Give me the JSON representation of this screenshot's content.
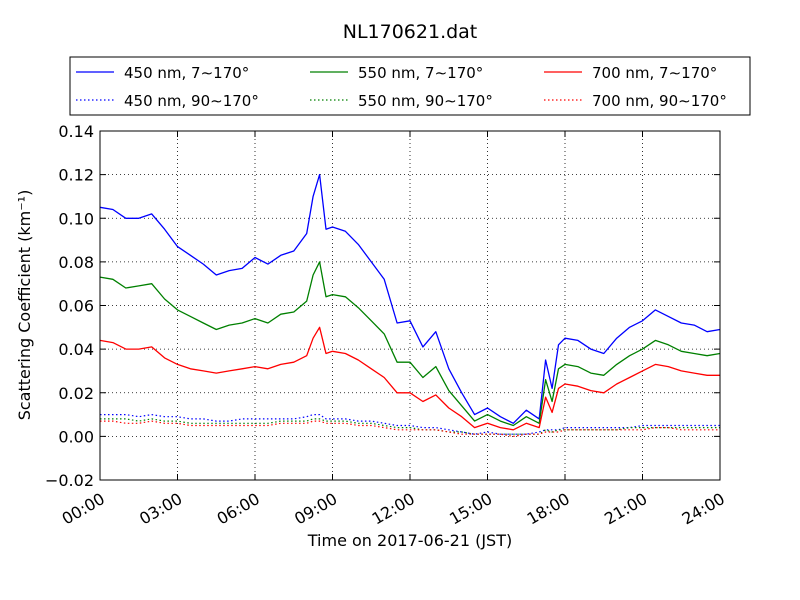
{
  "chart_data": {
    "type": "line",
    "title": "NL170621.dat",
    "xlabel": "Time on 2017-06-21 (JST)",
    "ylabel": "Scattering Coefficient (km⁻¹)",
    "xlim": [
      "00:00",
      "24:00"
    ],
    "ylim": [
      -0.02,
      0.14
    ],
    "x_ticks": [
      "00:00",
      "03:00",
      "06:00",
      "09:00",
      "12:00",
      "15:00",
      "18:00",
      "21:00",
      "24:00"
    ],
    "y_ticks": [
      "−0.02",
      "0.00",
      "0.02",
      "0.04",
      "0.06",
      "0.08",
      "0.10",
      "0.12",
      "0.14"
    ],
    "grid": true,
    "legend_placement": "top (above plot, 3 columns)",
    "x": [
      "00:00",
      "00:30",
      "01:00",
      "01:30",
      "02:00",
      "02:30",
      "03:00",
      "03:30",
      "04:00",
      "04:30",
      "05:00",
      "05:30",
      "06:00",
      "06:30",
      "07:00",
      "07:30",
      "08:00",
      "08:15",
      "08:30",
      "08:45",
      "09:00",
      "09:30",
      "10:00",
      "10:30",
      "11:00",
      "11:30",
      "12:00",
      "12:30",
      "13:00",
      "13:30",
      "14:00",
      "14:30",
      "15:00",
      "15:30",
      "16:00",
      "16:30",
      "17:00",
      "17:15",
      "17:30",
      "17:45",
      "18:00",
      "18:30",
      "19:00",
      "19:30",
      "20:00",
      "20:30",
      "21:00",
      "21:30",
      "22:00",
      "22:30",
      "23:00",
      "23:30",
      "24:00"
    ],
    "series": [
      {
        "name": "450 nm, 7∼170°",
        "color": "#0000ff",
        "style": "solid",
        "values": [
          0.105,
          0.104,
          0.1,
          0.1,
          0.102,
          0.095,
          0.087,
          0.083,
          0.079,
          0.074,
          0.076,
          0.077,
          0.082,
          0.079,
          0.083,
          0.085,
          0.093,
          0.11,
          0.12,
          0.095,
          0.096,
          0.094,
          0.088,
          0.08,
          0.072,
          0.052,
          0.053,
          0.041,
          0.048,
          0.031,
          0.02,
          0.01,
          0.013,
          0.009,
          0.006,
          0.012,
          0.008,
          0.035,
          0.022,
          0.042,
          0.045,
          0.044,
          0.04,
          0.038,
          0.045,
          0.05,
          0.053,
          0.058,
          0.055,
          0.052,
          0.051,
          0.048,
          0.049
        ]
      },
      {
        "name": "550 nm, 7∼170°",
        "color": "#008000",
        "style": "solid",
        "values": [
          0.073,
          0.072,
          0.068,
          0.069,
          0.07,
          0.063,
          0.058,
          0.055,
          0.052,
          0.049,
          0.051,
          0.052,
          0.054,
          0.052,
          0.056,
          0.057,
          0.062,
          0.074,
          0.08,
          0.064,
          0.065,
          0.064,
          0.059,
          0.053,
          0.047,
          0.034,
          0.034,
          0.027,
          0.032,
          0.021,
          0.014,
          0.007,
          0.01,
          0.007,
          0.005,
          0.009,
          0.006,
          0.026,
          0.016,
          0.031,
          0.033,
          0.032,
          0.029,
          0.028,
          0.033,
          0.037,
          0.04,
          0.044,
          0.042,
          0.039,
          0.038,
          0.037,
          0.038
        ]
      },
      {
        "name": "700 nm, 7∼170°",
        "color": "#ff0000",
        "style": "solid",
        "values": [
          0.044,
          0.043,
          0.04,
          0.04,
          0.041,
          0.036,
          0.033,
          0.031,
          0.03,
          0.029,
          0.03,
          0.031,
          0.032,
          0.031,
          0.033,
          0.034,
          0.037,
          0.045,
          0.05,
          0.038,
          0.039,
          0.038,
          0.035,
          0.031,
          0.027,
          0.02,
          0.02,
          0.016,
          0.019,
          0.013,
          0.009,
          0.004,
          0.006,
          0.004,
          0.003,
          0.006,
          0.004,
          0.018,
          0.011,
          0.022,
          0.024,
          0.023,
          0.021,
          0.02,
          0.024,
          0.027,
          0.03,
          0.033,
          0.032,
          0.03,
          0.029,
          0.028,
          0.028
        ]
      },
      {
        "name": "450 nm, 90∼170°",
        "color": "#0000ff",
        "style": "dotted",
        "values": [
          0.01,
          0.01,
          0.01,
          0.009,
          0.01,
          0.009,
          0.009,
          0.008,
          0.008,
          0.007,
          0.007,
          0.008,
          0.008,
          0.008,
          0.008,
          0.008,
          0.009,
          0.01,
          0.01,
          0.008,
          0.008,
          0.008,
          0.007,
          0.007,
          0.006,
          0.005,
          0.005,
          0.004,
          0.004,
          0.003,
          0.002,
          0.001,
          0.002,
          0.001,
          0.001,
          0.001,
          0.002,
          0.003,
          0.003,
          0.003,
          0.004,
          0.004,
          0.004,
          0.004,
          0.004,
          0.004,
          0.005,
          0.005,
          0.005,
          0.005,
          0.005,
          0.005,
          0.005
        ]
      },
      {
        "name": "550 nm, 90∼170°",
        "color": "#008000",
        "style": "dotted",
        "values": [
          0.008,
          0.008,
          0.008,
          0.007,
          0.008,
          0.007,
          0.007,
          0.006,
          0.006,
          0.006,
          0.006,
          0.006,
          0.006,
          0.006,
          0.007,
          0.007,
          0.007,
          0.008,
          0.008,
          0.007,
          0.007,
          0.007,
          0.006,
          0.006,
          0.005,
          0.004,
          0.004,
          0.003,
          0.003,
          0.002,
          0.002,
          0.001,
          0.001,
          0.001,
          0.001,
          0.001,
          0.001,
          0.003,
          0.002,
          0.003,
          0.003,
          0.003,
          0.003,
          0.003,
          0.003,
          0.004,
          0.004,
          0.004,
          0.004,
          0.004,
          0.004,
          0.004,
          0.004
        ]
      },
      {
        "name": "700 nm, 90∼170°",
        "color": "#ff0000",
        "style": "dotted",
        "values": [
          0.007,
          0.007,
          0.006,
          0.006,
          0.007,
          0.006,
          0.006,
          0.005,
          0.005,
          0.005,
          0.005,
          0.005,
          0.005,
          0.005,
          0.006,
          0.006,
          0.006,
          0.007,
          0.007,
          0.006,
          0.006,
          0.006,
          0.005,
          0.005,
          0.004,
          0.003,
          0.003,
          0.003,
          0.003,
          0.002,
          0.001,
          0.001,
          0.001,
          0.001,
          0.0,
          0.001,
          0.001,
          0.002,
          0.002,
          0.002,
          0.003,
          0.003,
          0.003,
          0.003,
          0.003,
          0.003,
          0.003,
          0.004,
          0.004,
          0.003,
          0.003,
          0.003,
          0.003
        ]
      }
    ]
  }
}
